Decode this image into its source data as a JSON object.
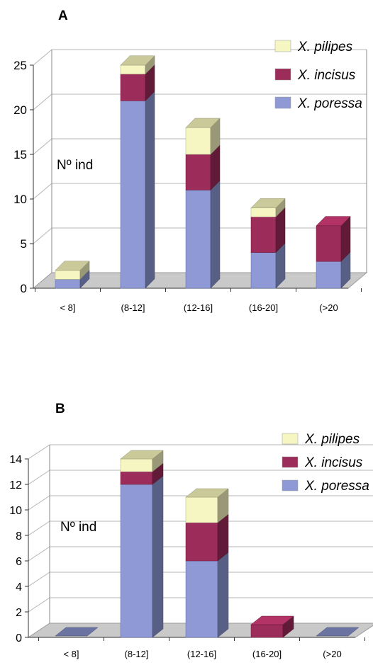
{
  "chart_data": [
    {
      "type": "bar",
      "stacked": true,
      "three_d": true,
      "panel_label": "A",
      "ylabel": "Nº ind",
      "categories": [
        "< 8]",
        "(8-12]",
        "(12-16]",
        "(16-20]",
        "(>20"
      ],
      "ylim": [
        0,
        25
      ],
      "yticks": [
        0,
        5,
        10,
        15,
        20,
        25
      ],
      "grid": true,
      "legend_position": "top-right",
      "series": [
        {
          "name": "X. poressa",
          "values": [
            1,
            21,
            11,
            4,
            3
          ]
        },
        {
          "name": "X. incisus",
          "values": [
            0,
            3,
            4,
            4,
            4
          ]
        },
        {
          "name": "X. pilipes",
          "values": [
            1,
            1,
            3,
            1,
            0
          ]
        }
      ]
    },
    {
      "type": "bar",
      "stacked": true,
      "three_d": true,
      "panel_label": "B",
      "ylabel": "Nº ind",
      "categories": [
        "< 8]",
        "(8-12]",
        "(12-16]",
        "(16-20]",
        "(>20"
      ],
      "ylim": [
        0,
        14
      ],
      "yticks": [
        0,
        2,
        4,
        6,
        8,
        10,
        12,
        14
      ],
      "grid": true,
      "legend_position": "top-right",
      "series": [
        {
          "name": "X. poressa",
          "values": [
            0,
            12,
            6,
            0,
            0
          ]
        },
        {
          "name": "X. incisus",
          "values": [
            0,
            1,
            3,
            1,
            0
          ]
        },
        {
          "name": "X. pilipes",
          "values": [
            0,
            1,
            2,
            0,
            0
          ]
        }
      ]
    }
  ],
  "colors": {
    "X. poressa": "#8e99d6",
    "X. incisus": "#9c2c5a",
    "X. pilipes": "#f6f6c2",
    "floor": "#c9c9c9",
    "grid": "#b5b5b5"
  }
}
